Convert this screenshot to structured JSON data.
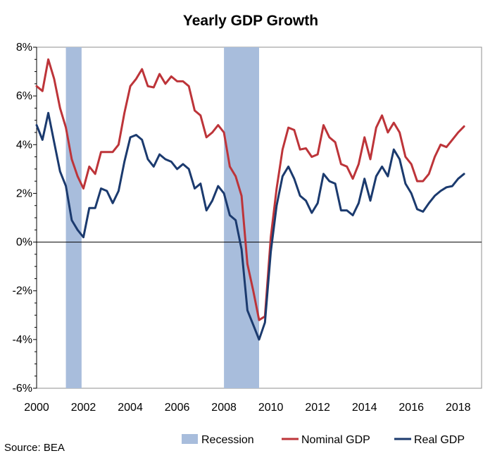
{
  "chart_data": {
    "type": "line",
    "title": "Yearly GDP Growth",
    "xlabel": "",
    "ylabel": "",
    "xlim": [
      2000,
      2019
    ],
    "ylim": [
      -6,
      8
    ],
    "x_ticks": [
      "2000",
      "2002",
      "2004",
      "2006",
      "2008",
      "2010",
      "2012",
      "2014",
      "2016",
      "2018"
    ],
    "y_ticks": [
      "8%",
      "6%",
      "4%",
      "2%",
      "0%",
      "-2%",
      "-4%",
      "-6%"
    ],
    "grid": false,
    "legend_position": "bottom",
    "recessions": [
      {
        "name": "Recession",
        "start": 2001.25,
        "end": 2001.92,
        "color": "#a8bddc"
      },
      {
        "name": "Recession",
        "start": 2008.0,
        "end": 2009.5,
        "color": "#a8bddc"
      }
    ],
    "series": [
      {
        "name": "Nominal GDP",
        "color": "#bd3439",
        "points": [
          [
            2000.0,
            6.4
          ],
          [
            2000.25,
            6.2
          ],
          [
            2000.5,
            7.5
          ],
          [
            2000.75,
            6.7
          ],
          [
            2001.0,
            5.5
          ],
          [
            2001.25,
            4.7
          ],
          [
            2001.5,
            3.4
          ],
          [
            2001.75,
            2.7
          ],
          [
            2002.0,
            2.2
          ],
          [
            2002.25,
            3.1
          ],
          [
            2002.5,
            2.8
          ],
          [
            2002.75,
            3.7
          ],
          [
            2003.0,
            3.7
          ],
          [
            2003.25,
            3.7
          ],
          [
            2003.5,
            4.0
          ],
          [
            2003.75,
            5.3
          ],
          [
            2004.0,
            6.4
          ],
          [
            2004.25,
            6.7
          ],
          [
            2004.5,
            7.1
          ],
          [
            2004.75,
            6.4
          ],
          [
            2005.0,
            6.35
          ],
          [
            2005.25,
            6.9
          ],
          [
            2005.5,
            6.5
          ],
          [
            2005.75,
            6.8
          ],
          [
            2006.0,
            6.6
          ],
          [
            2006.25,
            6.6
          ],
          [
            2006.5,
            6.4
          ],
          [
            2006.75,
            5.4
          ],
          [
            2007.0,
            5.2
          ],
          [
            2007.25,
            4.3
          ],
          [
            2007.5,
            4.5
          ],
          [
            2007.75,
            4.8
          ],
          [
            2008.0,
            4.5
          ],
          [
            2008.25,
            3.1
          ],
          [
            2008.5,
            2.7
          ],
          [
            2008.75,
            1.9
          ],
          [
            2009.0,
            -0.9
          ],
          [
            2009.25,
            -2.0
          ],
          [
            2009.5,
            -3.2
          ],
          [
            2009.75,
            -3.05
          ],
          [
            2010.0,
            0.2
          ],
          [
            2010.25,
            2.2
          ],
          [
            2010.5,
            3.8
          ],
          [
            2010.75,
            4.7
          ],
          [
            2011.0,
            4.6
          ],
          [
            2011.25,
            3.8
          ],
          [
            2011.5,
            3.85
          ],
          [
            2011.75,
            3.5
          ],
          [
            2012.0,
            3.6
          ],
          [
            2012.25,
            4.8
          ],
          [
            2012.5,
            4.3
          ],
          [
            2012.75,
            4.1
          ],
          [
            2013.0,
            3.2
          ],
          [
            2013.25,
            3.1
          ],
          [
            2013.5,
            2.6
          ],
          [
            2013.75,
            3.2
          ],
          [
            2014.0,
            4.3
          ],
          [
            2014.25,
            3.4
          ],
          [
            2014.5,
            4.7
          ],
          [
            2014.75,
            5.2
          ],
          [
            2015.0,
            4.5
          ],
          [
            2015.25,
            4.9
          ],
          [
            2015.5,
            4.5
          ],
          [
            2015.75,
            3.5
          ],
          [
            2016.0,
            3.2
          ],
          [
            2016.25,
            2.5
          ],
          [
            2016.5,
            2.5
          ],
          [
            2016.75,
            2.8
          ],
          [
            2017.0,
            3.5
          ],
          [
            2017.25,
            4.0
          ],
          [
            2017.5,
            3.9
          ],
          [
            2017.75,
            4.2
          ],
          [
            2018.0,
            4.5
          ],
          [
            2018.25,
            4.75
          ]
        ]
      },
      {
        "name": "Real GDP",
        "color": "#1b3a6e",
        "points": [
          [
            2000.0,
            4.8
          ],
          [
            2000.25,
            4.2
          ],
          [
            2000.5,
            5.3
          ],
          [
            2000.75,
            4.1
          ],
          [
            2001.0,
            2.9
          ],
          [
            2001.25,
            2.3
          ],
          [
            2001.5,
            0.9
          ],
          [
            2001.75,
            0.5
          ],
          [
            2002.0,
            0.2
          ],
          [
            2002.25,
            1.4
          ],
          [
            2002.5,
            1.4
          ],
          [
            2002.75,
            2.2
          ],
          [
            2003.0,
            2.1
          ],
          [
            2003.25,
            1.6
          ],
          [
            2003.5,
            2.1
          ],
          [
            2003.75,
            3.3
          ],
          [
            2004.0,
            4.3
          ],
          [
            2004.25,
            4.4
          ],
          [
            2004.5,
            4.2
          ],
          [
            2004.75,
            3.4
          ],
          [
            2005.0,
            3.1
          ],
          [
            2005.25,
            3.6
          ],
          [
            2005.5,
            3.4
          ],
          [
            2005.75,
            3.3
          ],
          [
            2006.0,
            3.0
          ],
          [
            2006.25,
            3.2
          ],
          [
            2006.5,
            3.0
          ],
          [
            2006.75,
            2.2
          ],
          [
            2007.0,
            2.4
          ],
          [
            2007.25,
            1.3
          ],
          [
            2007.5,
            1.7
          ],
          [
            2007.75,
            2.3
          ],
          [
            2008.0,
            2.0
          ],
          [
            2008.25,
            1.1
          ],
          [
            2008.5,
            0.9
          ],
          [
            2008.75,
            -0.3
          ],
          [
            2009.0,
            -2.8
          ],
          [
            2009.25,
            -3.4
          ],
          [
            2009.5,
            -4.0
          ],
          [
            2009.75,
            -3.3
          ],
          [
            2010.0,
            -0.4
          ],
          [
            2010.25,
            1.5
          ],
          [
            2010.5,
            2.7
          ],
          [
            2010.75,
            3.1
          ],
          [
            2011.0,
            2.6
          ],
          [
            2011.25,
            1.9
          ],
          [
            2011.5,
            1.7
          ],
          [
            2011.75,
            1.2
          ],
          [
            2012.0,
            1.6
          ],
          [
            2012.25,
            2.8
          ],
          [
            2012.5,
            2.5
          ],
          [
            2012.75,
            2.4
          ],
          [
            2013.0,
            1.3
          ],
          [
            2013.25,
            1.3
          ],
          [
            2013.5,
            1.1
          ],
          [
            2013.75,
            1.6
          ],
          [
            2014.0,
            2.6
          ],
          [
            2014.25,
            1.7
          ],
          [
            2014.5,
            2.7
          ],
          [
            2014.75,
            3.1
          ],
          [
            2015.0,
            2.7
          ],
          [
            2015.25,
            3.8
          ],
          [
            2015.5,
            3.4
          ],
          [
            2015.75,
            2.4
          ],
          [
            2016.0,
            2.0
          ],
          [
            2016.25,
            1.35
          ],
          [
            2016.5,
            1.25
          ],
          [
            2016.75,
            1.6
          ],
          [
            2017.0,
            1.9
          ],
          [
            2017.25,
            2.1
          ],
          [
            2017.5,
            2.25
          ],
          [
            2017.75,
            2.3
          ],
          [
            2018.0,
            2.6
          ],
          [
            2018.25,
            2.8
          ]
        ]
      }
    ]
  },
  "legend": {
    "recession_label": "Recession",
    "nominal_label": "Nominal GDP",
    "real_label": "Real GDP"
  },
  "source_note": "Source: BEA"
}
